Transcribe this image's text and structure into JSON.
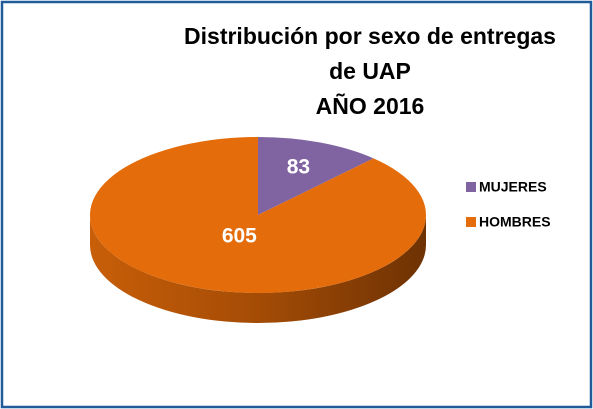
{
  "chart_data": {
    "type": "pie",
    "title": [
      "Distribución por sexo de entregas",
      "de UAP",
      "AÑO 2016"
    ],
    "categories": [
      "MUJERES",
      "HOMBRES"
    ],
    "values": [
      83,
      605
    ],
    "colors": [
      "#8064a2",
      "#e46c0a"
    ],
    "side_colors": [
      "#5c4478",
      "#a44c06"
    ],
    "legend": "right"
  }
}
